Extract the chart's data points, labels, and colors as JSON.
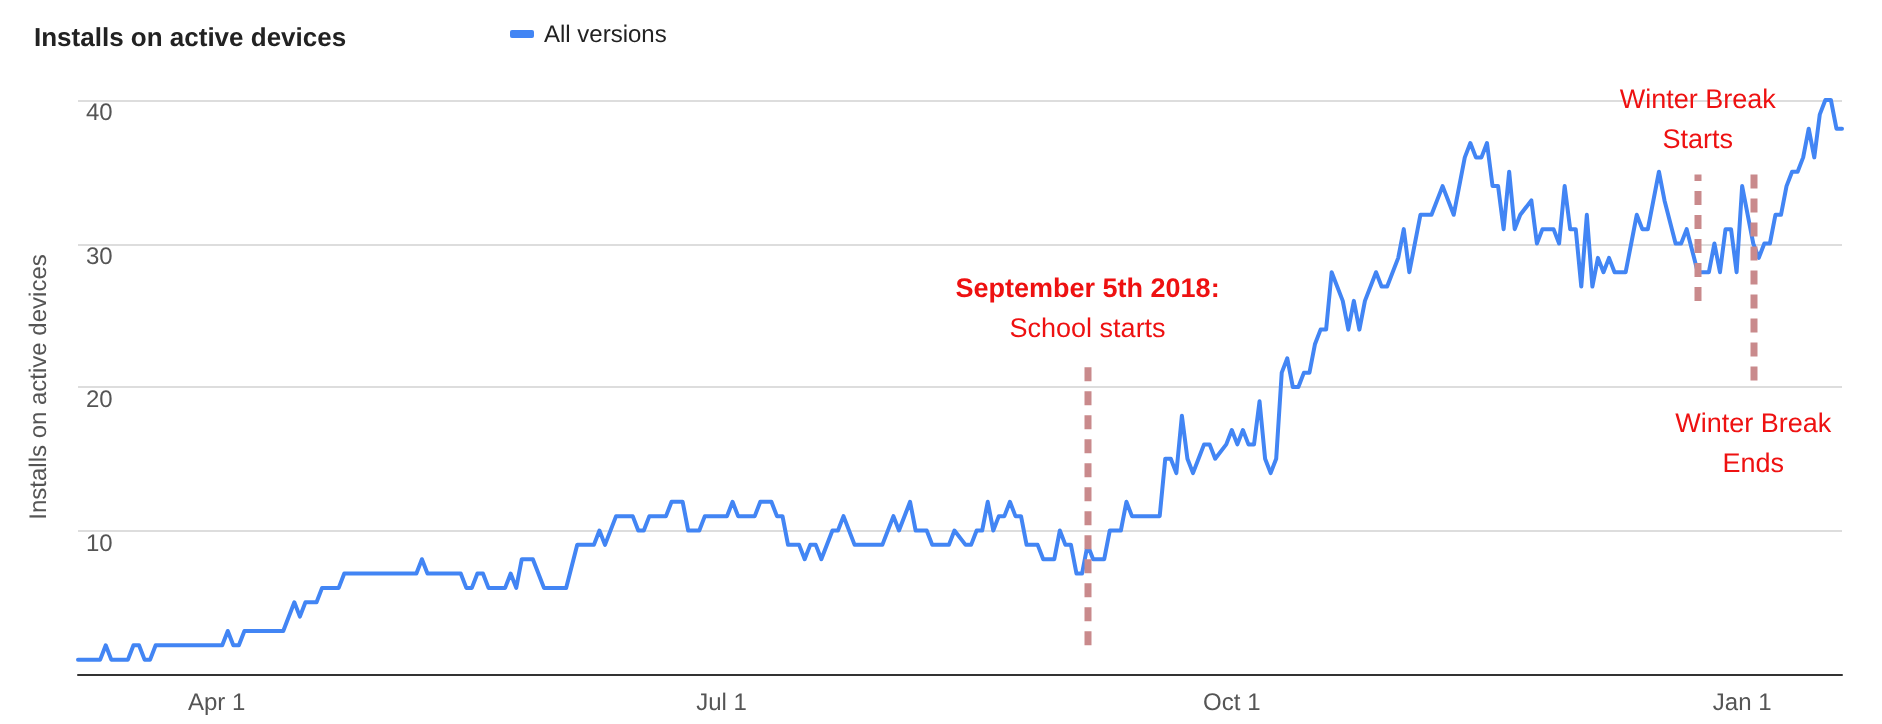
{
  "chart_data": {
    "type": "line",
    "title": "Installs on active devices",
    "ylabel": "Installs on active devices",
    "series": [
      {
        "name": "All versions",
        "color": "#4285f4",
        "x": [
          "2018-03-07",
          "2018-03-11",
          "2018-03-12",
          "2018-03-13",
          "2018-03-16",
          "2018-03-17",
          "2018-03-18",
          "2018-03-19",
          "2018-03-20",
          "2018-03-21",
          "2018-04-02",
          "2018-04-03",
          "2018-04-04",
          "2018-04-05",
          "2018-04-06",
          "2018-04-13",
          "2018-04-15",
          "2018-04-16",
          "2018-04-17",
          "2018-04-19",
          "2018-04-20",
          "2018-04-23",
          "2018-04-24",
          "2018-05-07",
          "2018-05-08",
          "2018-05-09",
          "2018-05-15",
          "2018-05-16",
          "2018-05-17",
          "2018-05-18",
          "2018-05-19",
          "2018-05-20",
          "2018-05-23",
          "2018-05-24",
          "2018-05-25",
          "2018-05-26",
          "2018-05-28",
          "2018-05-30",
          "2018-06-03",
          "2018-06-05",
          "2018-06-08",
          "2018-06-09",
          "2018-06-10",
          "2018-06-12",
          "2018-06-15",
          "2018-06-16",
          "2018-06-17",
          "2018-06-18",
          "2018-06-21",
          "2018-06-22",
          "2018-06-24",
          "2018-06-25",
          "2018-06-27",
          "2018-06-28",
          "2018-07-02",
          "2018-07-03",
          "2018-07-04",
          "2018-07-07",
          "2018-07-08",
          "2018-07-10",
          "2018-07-11",
          "2018-07-12",
          "2018-07-13",
          "2018-07-15",
          "2018-07-16",
          "2018-07-17",
          "2018-07-18",
          "2018-07-19",
          "2018-07-21",
          "2018-07-22",
          "2018-07-23",
          "2018-07-25",
          "2018-07-30",
          "2018-08-01",
          "2018-08-02",
          "2018-08-04",
          "2018-08-05",
          "2018-08-07",
          "2018-08-08",
          "2018-08-09",
          "2018-08-11",
          "2018-08-12",
          "2018-08-14",
          "2018-08-15",
          "2018-08-16",
          "2018-08-17",
          "2018-08-18",
          "2018-08-19",
          "2018-08-20",
          "2018-08-21",
          "2018-08-22",
          "2018-08-23",
          "2018-08-24",
          "2018-08-25",
          "2018-08-27",
          "2018-08-28",
          "2018-08-30",
          "2018-08-31",
          "2018-09-01",
          "2018-09-02",
          "2018-09-03",
          "2018-09-04",
          "2018-09-05",
          "2018-09-06",
          "2018-09-08",
          "2018-09-09",
          "2018-09-11",
          "2018-09-12",
          "2018-09-13",
          "2018-09-14",
          "2018-09-18",
          "2018-09-19",
          "2018-09-20",
          "2018-09-21",
          "2018-09-22",
          "2018-09-23",
          "2018-09-24",
          "2018-09-25",
          "2018-09-26",
          "2018-09-27",
          "2018-09-28",
          "2018-09-30",
          "2018-10-01",
          "2018-10-02",
          "2018-10-03",
          "2018-10-04",
          "2018-10-05",
          "2018-10-06",
          "2018-10-07",
          "2018-10-08",
          "2018-10-09",
          "2018-10-10",
          "2018-10-11",
          "2018-10-12",
          "2018-10-13",
          "2018-10-14",
          "2018-10-15",
          "2018-10-16",
          "2018-10-17",
          "2018-10-18",
          "2018-10-19",
          "2018-10-21",
          "2018-10-22",
          "2018-10-23",
          "2018-10-24",
          "2018-10-25",
          "2018-10-27",
          "2018-10-28",
          "2018-10-29",
          "2018-10-31",
          "2018-11-01",
          "2018-11-02",
          "2018-11-04",
          "2018-11-06",
          "2018-11-08",
          "2018-11-10",
          "2018-11-12",
          "2018-11-13",
          "2018-11-14",
          "2018-11-15",
          "2018-11-16",
          "2018-11-17",
          "2018-11-18",
          "2018-11-19",
          "2018-11-20",
          "2018-11-21",
          "2018-11-22",
          "2018-11-24",
          "2018-11-25",
          "2018-11-26",
          "2018-11-28",
          "2018-11-29",
          "2018-11-30",
          "2018-12-01",
          "2018-12-02",
          "2018-12-03",
          "2018-12-04",
          "2018-12-05",
          "2018-12-06",
          "2018-12-07",
          "2018-12-08",
          "2018-12-09",
          "2018-12-11",
          "2018-12-12",
          "2018-12-13",
          "2018-12-14",
          "2018-12-15",
          "2018-12-16",
          "2018-12-17",
          "2018-12-18",
          "2018-12-20",
          "2018-12-21",
          "2018-12-22",
          "2018-12-24",
          "2018-12-26",
          "2018-12-27",
          "2018-12-28",
          "2018-12-29",
          "2018-12-30",
          "2018-12-31",
          "2019-01-01",
          "2019-01-02",
          "2019-01-03",
          "2019-01-04",
          "2019-01-05",
          "2019-01-06",
          "2019-01-07",
          "2019-01-08",
          "2019-01-09",
          "2019-01-10",
          "2019-01-11",
          "2019-01-12",
          "2019-01-13",
          "2019-01-14",
          "2019-01-15",
          "2019-01-16",
          "2019-01-17",
          "2019-01-18",
          "2019-01-19"
        ],
        "values": [
          1,
          1,
          2,
          1,
          1,
          2,
          2,
          1,
          1,
          2,
          2,
          3,
          2,
          2,
          3,
          3,
          5,
          4,
          5,
          5,
          6,
          6,
          7,
          7,
          8,
          7,
          7,
          6,
          6,
          7,
          7,
          6,
          6,
          7,
          6,
          8,
          8,
          6,
          6,
          9,
          9,
          10,
          9,
          11,
          11,
          10,
          10,
          11,
          11,
          12,
          12,
          10,
          10,
          11,
          11,
          12,
          11,
          11,
          12,
          12,
          11,
          11,
          9,
          9,
          8,
          9,
          9,
          8,
          10,
          10,
          11,
          9,
          9,
          11,
          10,
          12,
          10,
          10,
          9,
          9,
          9,
          10,
          9,
          9,
          10,
          10,
          12,
          10,
          11,
          11,
          12,
          11,
          11,
          9,
          9,
          8,
          8,
          10,
          9,
          9,
          7,
          7,
          9,
          8,
          8,
          10,
          10,
          12,
          11,
          11,
          11,
          15,
          15,
          14,
          18,
          15,
          14,
          15,
          16,
          16,
          15,
          16,
          17,
          16,
          17,
          16,
          16,
          19,
          15,
          14,
          15,
          21,
          22,
          20,
          20,
          21,
          21,
          23,
          24,
          24,
          28,
          26,
          24,
          26,
          24,
          26,
          28,
          27,
          27,
          29,
          31,
          28,
          32,
          32,
          34,
          32,
          36,
          37,
          36,
          36,
          37,
          34,
          34,
          31,
          35,
          31,
          32,
          33,
          30,
          31,
          31,
          30,
          34,
          31,
          31,
          27,
          32,
          27,
          29,
          28,
          29,
          28,
          28,
          30,
          32,
          31,
          31,
          33,
          35,
          33,
          30,
          30,
          31,
          28,
          28,
          30,
          28,
          31,
          31,
          28,
          34,
          32,
          30,
          29,
          30,
          30,
          32,
          32,
          34,
          35,
          35,
          36,
          38,
          36,
          39,
          40,
          40,
          38,
          38
        ]
      }
    ],
    "xlim": [
      "2018-03-07",
      "2019-01-19"
    ],
    "xticks": [
      {
        "value": "2018-04-01",
        "label": "Apr 1"
      },
      {
        "value": "2018-07-01",
        "label": "Jul 1"
      },
      {
        "value": "2018-10-01",
        "label": "Oct 1"
      },
      {
        "value": "2019-01-01",
        "label": "Jan 1"
      }
    ],
    "ylim": [
      0,
      40
    ],
    "yticks": [
      10,
      20,
      30,
      40
    ],
    "grid": "y",
    "legend": "top left",
    "marker": "none",
    "line_style": "solid",
    "ref_lines": [
      {
        "axis": "x",
        "value": "2018-09-05",
        "label": "September 5th 2018:\nSchool starts",
        "color": "#c98a8c",
        "line_style": "dashed"
      },
      {
        "axis": "x",
        "value": "2018-12-24",
        "label": "Winter Break\nStarts",
        "color": "#c98a8c",
        "line_style": "dashed"
      },
      {
        "axis": "x",
        "value": "2019-01-03",
        "label": "Winter Break\nEnds",
        "color": "#c98a8c",
        "line_style": "dashed"
      }
    ]
  }
}
